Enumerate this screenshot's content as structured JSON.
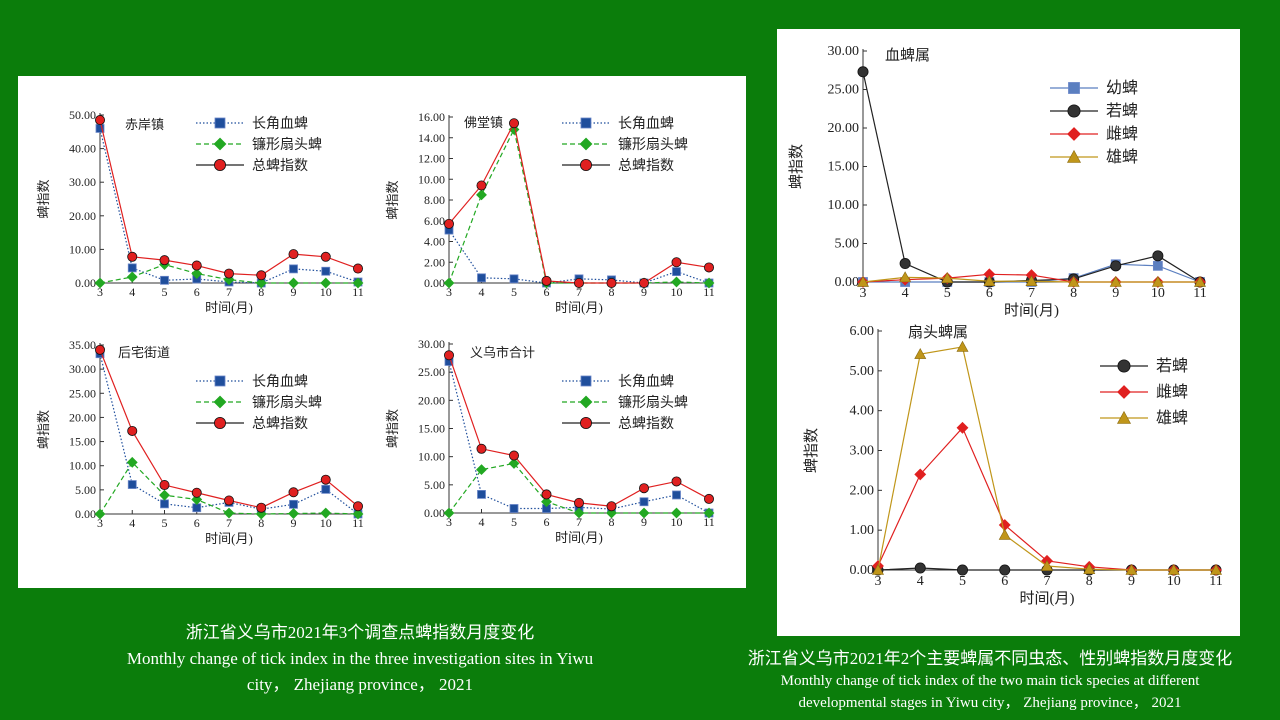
{
  "colors": {
    "background": "#0b7d0b",
    "blue": "#1f4e9c",
    "green": "#22a822",
    "red": "#e02020",
    "black": "#222222",
    "gold": "#c0961a",
    "lightblue": "#5b7fc0"
  },
  "captions": {
    "left": {
      "zh": "浙江省义乌市2021年3个调查点蜱指数月度变化",
      "en1": "Monthly  change  of tick index  in the three investigation sites in Yiwu",
      "en2": "city，  Zhejiang province，  2021"
    },
    "right": {
      "zh": "浙江省义乌市2021年2个主要蜱属不同虫态、性别蜱指数月度变化",
      "en1": "Monthly  change  of tick index  of the two main tick species at different",
      "en2": "developmental  stages in Yiwu city，  Zhejiang  province，  2021"
    }
  },
  "chart_data": [
    {
      "type": "line",
      "title": "赤岸镇",
      "xlabel": "时间(月)",
      "ylabel": "蜱指数",
      "categories": [
        "3",
        "4",
        "5",
        "6",
        "7",
        "8",
        "9",
        "10",
        "11"
      ],
      "ylim": [
        0,
        50
      ],
      "yticks": [
        "0.00",
        "10.00",
        "20.00",
        "30.00",
        "40.00",
        "50.00"
      ],
      "legend": "top-right",
      "series": [
        {
          "name": "长角血蜱",
          "marker": "square",
          "color": "#1f4e9c",
          "line": "dotted",
          "values": [
            46,
            4.5,
            0.8,
            1.2,
            0.3,
            0,
            4.2,
            3.5,
            0.3
          ]
        },
        {
          "name": "镰形扇头蜱",
          "marker": "diamond",
          "color": "#22a822",
          "line": "dashed",
          "values": [
            0,
            1.8,
            5.5,
            2.8,
            1.0,
            0,
            0,
            0,
            0
          ]
        },
        {
          "name": "总蜱指数",
          "marker": "circle",
          "color": "#e02020",
          "line": "solid",
          "values": [
            48.5,
            7.8,
            6.8,
            5.2,
            2.8,
            2.3,
            8.6,
            7.8,
            4.3
          ]
        }
      ]
    },
    {
      "type": "line",
      "title": "佛堂镇",
      "xlabel": "时间(月)",
      "ylabel": "蜱指数",
      "categories": [
        "3",
        "4",
        "5",
        "6",
        "7",
        "8",
        "9",
        "10",
        "11"
      ],
      "ylim": [
        0,
        16
      ],
      "yticks": [
        "0.00",
        "2.00",
        "4.00",
        "6.00",
        "8.00",
        "10.00",
        "12.00",
        "14.00",
        "16.00"
      ],
      "legend": "top-right",
      "series": [
        {
          "name": "长角血蜱",
          "marker": "square",
          "color": "#1f4e9c",
          "line": "dotted",
          "values": [
            5.1,
            0.5,
            0.4,
            0,
            0.4,
            0.3,
            0,
            1.1,
            0
          ]
        },
        {
          "name": "镰形扇头蜱",
          "marker": "diamond",
          "color": "#22a822",
          "line": "dashed",
          "values": [
            0,
            8.5,
            14.8,
            0,
            0,
            0,
            0,
            0.1,
            0
          ]
        },
        {
          "name": "总蜱指数",
          "marker": "circle",
          "color": "#e02020",
          "line": "solid",
          "values": [
            5.7,
            9.4,
            15.4,
            0.2,
            0,
            0,
            0,
            2.0,
            1.5
          ]
        }
      ]
    },
    {
      "type": "line",
      "title": "后宅街道",
      "xlabel": "时间(月)",
      "ylabel": "蜱指数",
      "categories": [
        "3",
        "4",
        "5",
        "6",
        "7",
        "8",
        "9",
        "10",
        "11"
      ],
      "ylim": [
        0,
        35
      ],
      "yticks": [
        "0.00",
        "5.00",
        "10.00",
        "15.00",
        "20.00",
        "25.00",
        "30.00",
        "35.00"
      ],
      "legend": "top-right",
      "series": [
        {
          "name": "长角血蜱",
          "marker": "square",
          "color": "#1f4e9c",
          "line": "dotted",
          "values": [
            33.2,
            6.1,
            2.1,
            1.3,
            2.4,
            1.0,
            2.0,
            5.1,
            0
          ]
        },
        {
          "name": "镰形扇头蜱",
          "marker": "diamond",
          "color": "#22a822",
          "line": "dashed",
          "values": [
            0,
            10.7,
            3.9,
            3.0,
            0.2,
            0,
            0.1,
            0.2,
            0
          ]
        },
        {
          "name": "总蜱指数",
          "marker": "circle",
          "color": "#e02020",
          "line": "solid",
          "values": [
            34,
            17.2,
            6.0,
            4.4,
            2.8,
            1.3,
            4.5,
            7.1,
            1.6
          ]
        }
      ]
    },
    {
      "type": "line",
      "title": "义乌市合计",
      "xlabel": "时间(月)",
      "ylabel": "蜱指数",
      "categories": [
        "3",
        "4",
        "5",
        "6",
        "7",
        "8",
        "9",
        "10",
        "11"
      ],
      "ylim": [
        0,
        30
      ],
      "yticks": [
        "0.00",
        "5.00",
        "10.00",
        "15.00",
        "20.00",
        "25.00",
        "30.00"
      ],
      "legend": "top-right",
      "series": [
        {
          "name": "长角血蜱",
          "marker": "square",
          "color": "#1f4e9c",
          "line": "dotted",
          "values": [
            26.9,
            3.3,
            0.8,
            0.8,
            1.0,
            0.7,
            2.0,
            3.2,
            0
          ]
        },
        {
          "name": "镰形扇头蜱",
          "marker": "diamond",
          "color": "#22a822",
          "line": "dashed",
          "values": [
            0,
            7.7,
            8.8,
            2.0,
            0,
            0,
            0,
            0,
            0
          ]
        },
        {
          "name": "总蜱指数",
          "marker": "circle",
          "color": "#e02020",
          "line": "solid",
          "values": [
            28,
            11.4,
            10.2,
            3.3,
            1.8,
            1.2,
            4.4,
            5.6,
            2.5
          ]
        }
      ]
    },
    {
      "type": "line",
      "title": "血蜱属",
      "xlabel": "时间(月)",
      "ylabel": "蜱指数",
      "categories": [
        "3",
        "4",
        "5",
        "6",
        "7",
        "8",
        "9",
        "10",
        "11"
      ],
      "ylim": [
        0,
        30
      ],
      "yticks": [
        "0.00",
        "5.00",
        "10.00",
        "15.00",
        "20.00",
        "25.00",
        "30.00"
      ],
      "legend": "top-right",
      "series": [
        {
          "name": "幼蜱",
          "marker": "square",
          "color": "#5b7fc0",
          "line": "solid",
          "values": [
            0,
            0,
            0,
            0,
            0,
            0.5,
            2.3,
            2.1,
            0
          ]
        },
        {
          "name": "若蜱",
          "marker": "circle",
          "color": "#222222",
          "line": "solid",
          "values": [
            27.3,
            2.4,
            0,
            0,
            0.2,
            0.4,
            2.1,
            3.4,
            0
          ]
        },
        {
          "name": "雌蜱",
          "marker": "diamond",
          "color": "#e02020",
          "line": "solid",
          "values": [
            0,
            0.3,
            0.5,
            1.0,
            0.9,
            0,
            0,
            0,
            0
          ]
        },
        {
          "name": "雄蜱",
          "marker": "triangle",
          "color": "#c0961a",
          "line": "solid",
          "values": [
            0,
            0.6,
            0.5,
            0.1,
            0.1,
            0,
            0,
            0,
            0
          ]
        }
      ]
    },
    {
      "type": "line",
      "title": "扇头蜱属",
      "xlabel": "时间(月)",
      "ylabel": "蜱指数",
      "categories": [
        "3",
        "4",
        "5",
        "6",
        "7",
        "8",
        "9",
        "10",
        "11"
      ],
      "ylim": [
        0,
        6
      ],
      "yticks": [
        "0.00",
        "1.00",
        "2.00",
        "3.00",
        "4.00",
        "5.00",
        "6.00"
      ],
      "legend": "top-right",
      "series": [
        {
          "name": "若蜱",
          "marker": "circle",
          "color": "#222222",
          "line": "solid",
          "values": [
            0,
            0.05,
            0,
            0,
            0,
            0,
            0,
            0,
            0
          ]
        },
        {
          "name": "雌蜱",
          "marker": "diamond",
          "color": "#e02020",
          "line": "solid",
          "values": [
            0.1,
            2.4,
            3.57,
            1.13,
            0.23,
            0.08,
            0,
            0,
            0
          ]
        },
        {
          "name": "雄蜱",
          "marker": "triangle",
          "color": "#c0961a",
          "line": "solid",
          "values": [
            0,
            5.42,
            5.6,
            0.88,
            0.1,
            0.02,
            0,
            0,
            0
          ]
        }
      ]
    }
  ]
}
